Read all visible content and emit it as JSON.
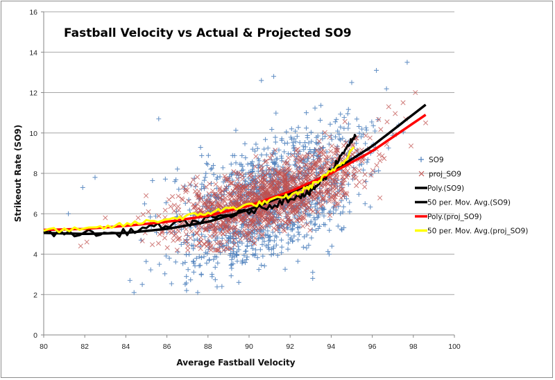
{
  "chart_data": {
    "type": "scatter",
    "title": "Fastball Velocity vs Actual & Projected SO9",
    "xlabel": "Average Fastball Velocity",
    "ylabel": "Strikeout Rate (SO9)",
    "xlim": [
      80,
      100
    ],
    "ylim": [
      0,
      16
    ],
    "x_ticks": [
      "80",
      "82",
      "84",
      "86",
      "88",
      "90",
      "92",
      "94",
      "96",
      "98",
      "100"
    ],
    "y_ticks": [
      "0",
      "2",
      "4",
      "6",
      "8",
      "10",
      "12",
      "14",
      "16"
    ],
    "grid": "horizontal",
    "legend_position": "right",
    "legend": [
      {
        "label": "SO9",
        "marker": "plus",
        "color": "#4f81bd"
      },
      {
        "label": "proj_SO9",
        "marker": "x",
        "color": "#c0504d"
      },
      {
        "label": "Poly.(SO9)",
        "marker": "line",
        "color": "#000000"
      },
      {
        "label": "50 per. Mov. Avg.(SO9)",
        "marker": "line",
        "color": "#000000"
      },
      {
        "label": "Poly.(proj_SO9)",
        "marker": "line",
        "color": "#ff0000"
      },
      {
        "label": "50 per. Mov. Avg.(proj_SO9)",
        "marker": "line",
        "color": "#ffff00"
      }
    ],
    "series": [
      {
        "name": "SO9",
        "kind": "scatter",
        "marker": "plus",
        "color": "#4f81bd",
        "note": "dense cloud ~1500 points, x 81-98.5, y 2-13.5; notable outliers listed",
        "outliers": [
          [
            84.2,
            2.7
          ],
          [
            84.4,
            2.1
          ],
          [
            84.8,
            2.5
          ],
          [
            87.5,
            2.1
          ],
          [
            89.5,
            2.6
          ],
          [
            85.6,
            10.7
          ],
          [
            90.6,
            12.6
          ],
          [
            91.2,
            12.8
          ],
          [
            95.0,
            12.5
          ],
          [
            96.2,
            13.1
          ],
          [
            97.7,
            13.5
          ],
          [
            81.2,
            6.0
          ],
          [
            81.9,
            7.3
          ],
          [
            82.5,
            7.8
          ],
          [
            93.9,
            4.0
          ],
          [
            93.1,
            2.8
          ],
          [
            93.1,
            3.1
          ]
        ]
      },
      {
        "name": "proj_SO9",
        "kind": "scatter",
        "marker": "x",
        "color": "#c0504d",
        "note": "dense cloud ~1500 points, x 81-98.6, y 4.2-12",
        "outliers": [
          [
            98.1,
            12.0
          ],
          [
            97.5,
            11.5
          ],
          [
            96.8,
            11.3
          ],
          [
            98.6,
            10.5
          ],
          [
            81.8,
            4.4
          ],
          [
            82.1,
            4.6
          ],
          [
            83.0,
            5.8
          ],
          [
            84.6,
            5.8
          ],
          [
            85.1,
            6.1
          ]
        ]
      },
      {
        "name": "Poly.(SO9)",
        "kind": "trendline",
        "color": "#000000",
        "x": [
          80,
          82,
          84,
          86,
          88,
          90,
          92,
          94,
          96,
          98.6
        ],
        "y": [
          5.05,
          5.0,
          5.05,
          5.25,
          5.6,
          6.2,
          7.0,
          8.05,
          9.35,
          11.4
        ]
      },
      {
        "name": "50 per. Mov. Avg.(SO9)",
        "kind": "moving_average",
        "color": "#000000",
        "x": [
          80,
          82,
          83.5,
          85,
          86.5,
          87.5,
          88.5,
          89.5,
          90.5,
          91.5,
          92.3,
          92.9,
          93.3,
          93.8,
          94.3,
          94.8,
          95.2
        ],
        "y": [
          5.05,
          5.05,
          5.0,
          5.3,
          5.5,
          5.6,
          5.85,
          6.0,
          6.25,
          6.55,
          6.9,
          7.0,
          7.4,
          7.9,
          8.6,
          9.4,
          9.8
        ]
      },
      {
        "name": "Poly.(proj_SO9)",
        "kind": "trendline",
        "color": "#ff0000",
        "x": [
          80,
          82,
          84,
          86,
          88,
          90,
          92,
          94,
          96,
          98.6
        ],
        "y": [
          5.2,
          5.25,
          5.4,
          5.6,
          5.9,
          6.4,
          7.1,
          8.0,
          9.1,
          10.9
        ]
      },
      {
        "name": "50 per. Mov. Avg.(proj_SO9)",
        "kind": "moving_average",
        "color": "#ffff00",
        "x": [
          80,
          82,
          83.5,
          85,
          86.5,
          87.5,
          88.5,
          89.5,
          90.5,
          91.5,
          92.3,
          92.9,
          93.5,
          94.0,
          94.6,
          95.1
        ],
        "y": [
          5.2,
          5.2,
          5.4,
          5.6,
          5.8,
          5.95,
          6.15,
          6.35,
          6.5,
          6.75,
          7.0,
          7.3,
          7.7,
          8.1,
          8.6,
          9.3
        ]
      }
    ]
  }
}
